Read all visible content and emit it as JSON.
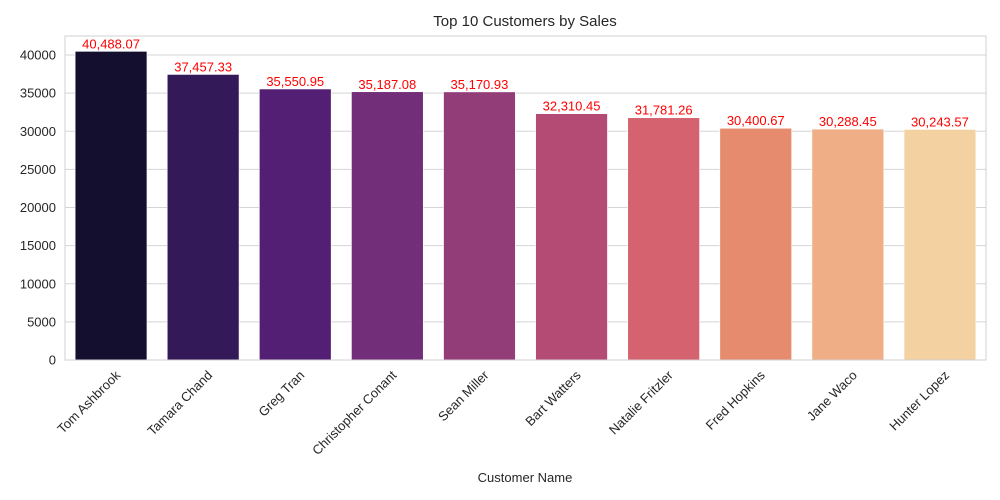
{
  "chart_data": {
    "type": "bar",
    "title": "Top 10 Customers by Sales",
    "xlabel": "Customer Name",
    "ylabel": "",
    "categories": [
      "Tom Ashbrook",
      "Tamara Chand",
      "Greg Tran",
      "Christopher Conant",
      "Sean Miller",
      "Bart Watters",
      "Natalie Fritzler",
      "Fred Hopkins",
      "Jane Waco",
      "Hunter Lopez"
    ],
    "values": [
      40488.07,
      37457.33,
      35550.95,
      35187.08,
      35170.93,
      32310.45,
      31781.26,
      30400.67,
      30288.45,
      30243.57
    ],
    "data_labels": [
      "40,488.07",
      "37,457.33",
      "35,550.95",
      "35,187.08",
      "35,170.93",
      "32,310.45",
      "31,781.26",
      "30,400.67",
      "30,288.45",
      "30,243.57"
    ],
    "yticks": [
      "0",
      "5000",
      "10000",
      "15000",
      "20000",
      "25000",
      "30000",
      "35000",
      "40000"
    ],
    "ylim": [
      0,
      42500
    ],
    "grid": true,
    "colors": [
      "#140f2e",
      "#341959",
      "#531f74",
      "#722e78",
      "#923c78",
      "#b44b74",
      "#d5636f",
      "#e68b6e",
      "#efae85",
      "#f3d1a0"
    ],
    "label_color": "#ff0000"
  }
}
